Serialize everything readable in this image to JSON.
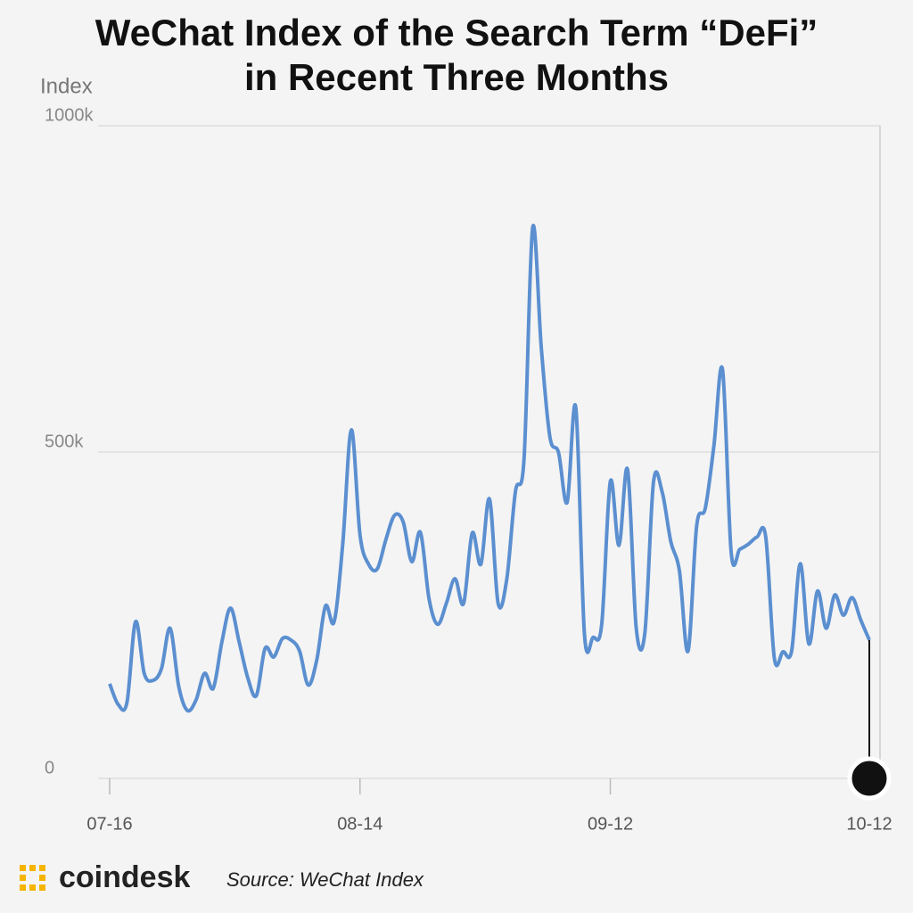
{
  "chart_data": {
    "type": "line",
    "title": "WeChat Index of the Search Term “DeFi” in Recent Three Months",
    "y_label": "Index",
    "brand": "coindesk",
    "source": "Source: WeChat Index",
    "categories": [
      "07-16",
      null,
      null,
      null,
      null,
      null,
      null,
      null,
      null,
      null,
      null,
      null,
      null,
      null,
      null,
      null,
      null,
      null,
      null,
      null,
      null,
      null,
      null,
      null,
      null,
      null,
      null,
      null,
      null,
      "08-14",
      null,
      null,
      null,
      null,
      null,
      null,
      null,
      null,
      null,
      null,
      null,
      null,
      null,
      null,
      null,
      null,
      null,
      null,
      null,
      null,
      null,
      null,
      null,
      null,
      null,
      null,
      null,
      null,
      "09-12",
      null,
      null,
      null,
      null,
      null,
      null,
      null,
      null,
      null,
      null,
      null,
      null,
      null,
      null,
      null,
      null,
      null,
      null,
      null,
      null,
      null,
      null,
      null,
      null,
      null,
      null,
      null,
      null,
      null,
      "10-12"
    ],
    "series": [
      {
        "name": "Index",
        "color": "#5b8fd0",
        "values": [
          145000,
          113000,
          116000,
          240000,
          161000,
          150000,
          168000,
          230000,
          141000,
          104000,
          120000,
          161000,
          138000,
          209000,
          261000,
          209000,
          154000,
          127000,
          199000,
          186000,
          214000,
          212000,
          195000,
          143000,
          182000,
          264000,
          240000,
          359000,
          534000,
          373000,
          328000,
          321000,
          366000,
          403000,
          393000,
          332000,
          377000,
          275000,
          236000,
          268000,
          306000,
          268000,
          376000,
          328000,
          428000,
          268000,
          305000,
          439000,
          489000,
          844000,
          660000,
          523000,
          499000,
          423000,
          568000,
          221000,
          216000,
          236000,
          455000,
          357000,
          473000,
          230000,
          223000,
          454000,
          439000,
          363000,
          318000,
          195000,
          387000,
          414000,
          510000,
          626000,
          346000,
          351000,
          359000,
          370000,
          370000,
          184000,
          194000,
          195000,
          329000,
          206000,
          287000,
          230000,
          281000,
          250000,
          277000,
          243000,
          212000
        ]
      }
    ],
    "ylim": [
      0,
      1000000
    ],
    "yticks": [
      0,
      {
        "value": 500000,
        "label": "500k"
      },
      {
        "value": 1000000,
        "label": "1000k"
      }
    ],
    "grid": true
  }
}
